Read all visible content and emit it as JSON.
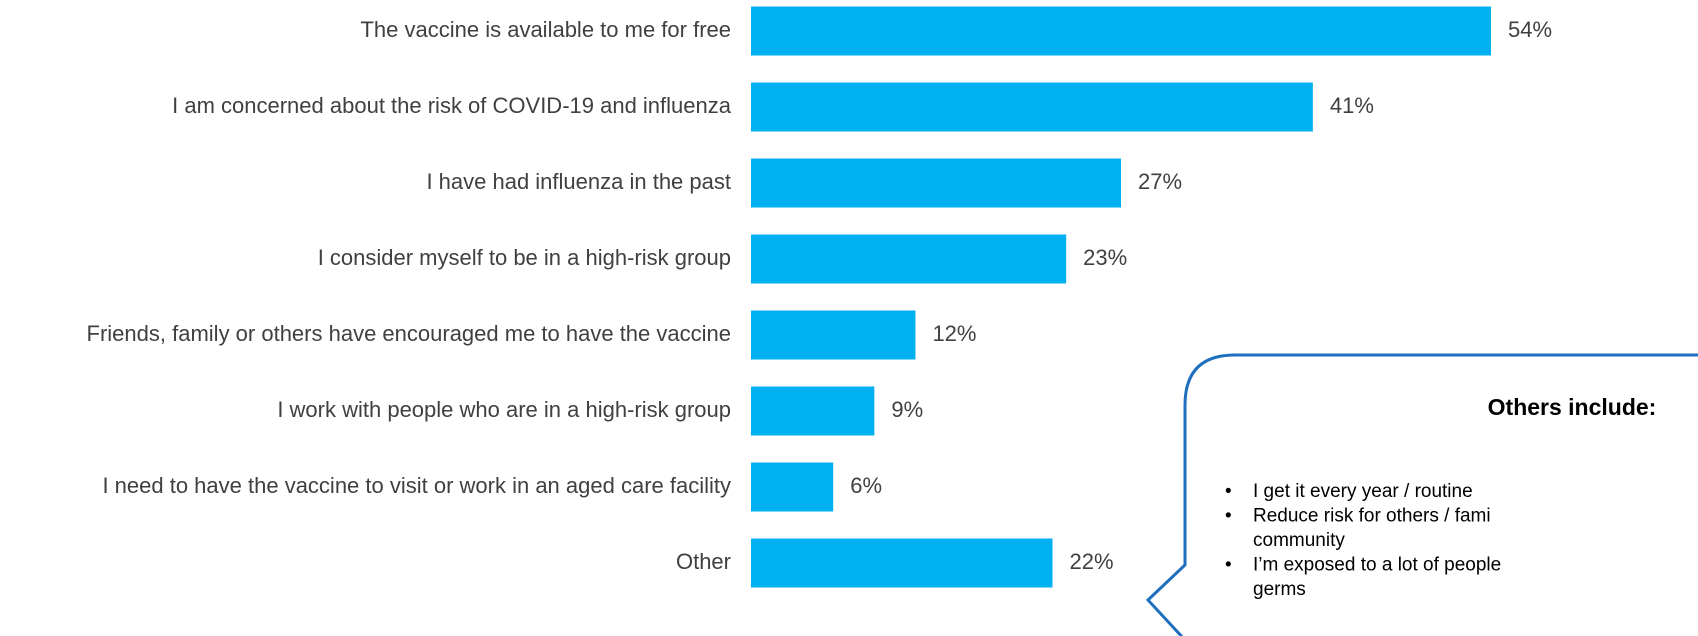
{
  "chart_data": {
    "type": "bar",
    "orientation": "horizontal",
    "color": "#00b0f0",
    "categories": [
      "The vaccine is available to me for free",
      "I am concerned about the risk of COVID-19 and influenza",
      "I have had influenza in the past",
      "I consider myself to be in a high-risk group",
      "Friends, family or others have encouraged me to have the vaccine",
      "I work with people who are in a high-risk group",
      "I need to have the vaccine to visit or work in an aged care facility",
      "Other"
    ],
    "values": [
      54,
      41,
      27,
      23,
      12,
      9,
      6,
      22
    ],
    "value_labels": [
      "54%",
      "41%",
      "27%",
      "23%",
      "12%",
      "9%",
      "6%",
      "22%"
    ]
  },
  "callout": {
    "title": "Others include:",
    "items": [
      [
        "I get it every year / routine"
      ],
      [
        "Reduce risk for others / fami",
        "community"
      ],
      [
        "I’m exposed to a lot of people",
        "germs"
      ]
    ]
  }
}
